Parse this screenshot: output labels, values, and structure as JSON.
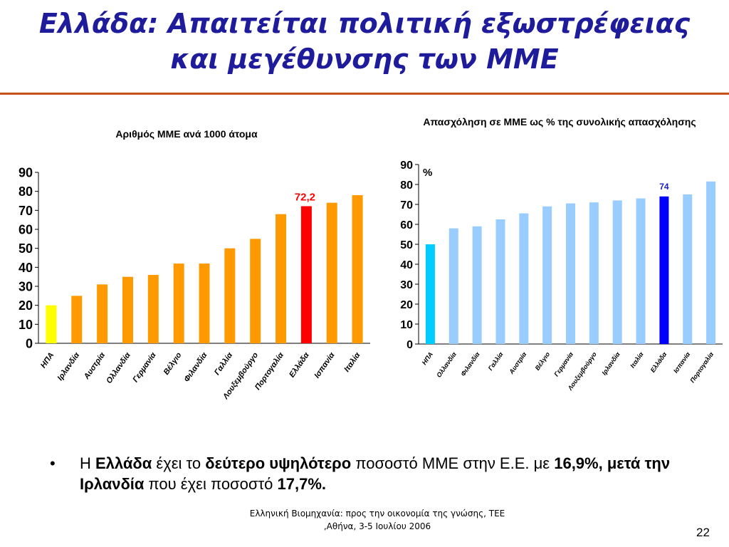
{
  "slide": {
    "title_line1": "Ελλάδα:  Απαιτείται πολιτική εξωστρέφειας",
    "title_line2": "και μεγέθυνσης των ΜΜΕ",
    "bullet": {
      "symbol": "•",
      "t1": "Η ",
      "t2": "Ελλάδα",
      "t3": " έχει το ",
      "t4": "δεύτερο υψηλότερο",
      "t5": " ποσοστό ΜΜΕ στην Ε.Ε. με ",
      "t6": "16,9%, μετά την Ιρλανδία",
      "t7": " που έχει ποσοστό ",
      "t8": "17,7%."
    },
    "footer_line1": "Ελληνική Βιομηχανία: προς την οικονομία της γνώσης, ΤΕΕ",
    "footer_line2": ",Αθήνα, 3-5 Ιουλίου 2006",
    "page_number": "22"
  },
  "chart_data": [
    {
      "type": "bar",
      "title": "Αριθμός ΜΜΕ ανά 1000 άτομα",
      "categories": [
        "ΗΠΑ",
        "Ιρλανδία",
        "Αυστρία",
        "Ολλανδία",
        "Γερμανία",
        "Βέλγιο",
        "Φιλανδία",
        "Γαλλία",
        "Λουξεμβούργο",
        "Πορτογαλία",
        "Ελλάδα",
        "Ισπανία",
        "Ιταλία"
      ],
      "values": [
        20,
        25,
        31,
        35,
        36,
        42,
        42,
        50,
        55,
        68,
        72.2,
        74,
        78
      ],
      "colors": [
        "#ffff00",
        "#ff9900",
        "#ff9900",
        "#ff9900",
        "#ff9900",
        "#ff9900",
        "#ff9900",
        "#ff9900",
        "#ff9900",
        "#ff9900",
        "#ff0000",
        "#ff9900",
        "#ff9900"
      ],
      "data_labels": [
        {
          "category": "Ελλάδα",
          "text": "72,2",
          "color": "#ff0000"
        }
      ],
      "ylim": [
        0,
        90
      ],
      "yticks": [
        "0",
        "10",
        "20",
        "30",
        "40",
        "50",
        "60",
        "70",
        "80",
        "90"
      ],
      "unit_label": "",
      "grid": false
    },
    {
      "type": "bar",
      "title": "Απασχόληση σε ΜΜΕ ως % της συνολικής απασχόλησης",
      "categories": [
        "ΗΠΑ",
        "Ολλανδία",
        "Φιλανδία",
        "Γαλλία",
        "Αυστρία",
        "Βέλγιο",
        "Γερμανία",
        "Λουξεμβούργο",
        "Ιρλανδία",
        "Ιταλία",
        "Ελλάδα",
        "Ισπανία",
        "Πορτογαλία"
      ],
      "values": [
        50,
        58,
        59,
        62.5,
        65.5,
        69,
        70.5,
        71,
        72,
        73,
        74,
        75,
        81.5
      ],
      "colors": [
        "#00ccff",
        "#99ccff",
        "#99ccff",
        "#99ccff",
        "#99ccff",
        "#99ccff",
        "#99ccff",
        "#99ccff",
        "#99ccff",
        "#99ccff",
        "#0000ff",
        "#99ccff",
        "#99ccff"
      ],
      "data_labels": [
        {
          "category": "Ελλάδα",
          "text": "74",
          "color": "#1a1acc"
        }
      ],
      "ylim": [
        0,
        90
      ],
      "yticks": [
        "0",
        "10",
        "20",
        "30",
        "40",
        "50",
        "60",
        "70",
        "80",
        "90"
      ],
      "unit_label": "%",
      "grid": false
    }
  ]
}
